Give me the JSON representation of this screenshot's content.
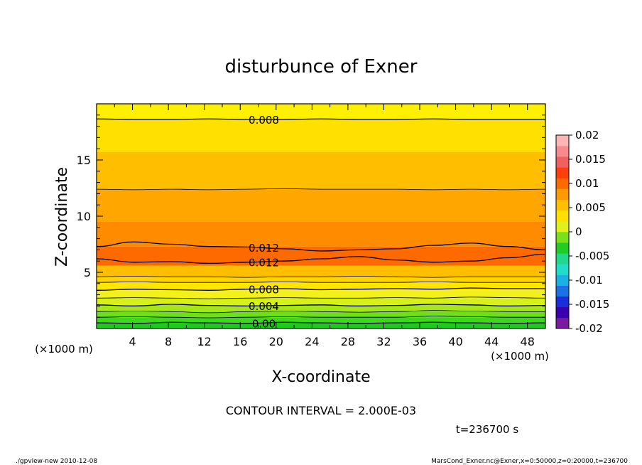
{
  "chart_data": {
    "type": "heatmap",
    "title": "disturbunce of Exner",
    "xlabel": "X-coordinate",
    "ylabel": "Z-coordinate",
    "x_unit": "(×1000 m)",
    "y_unit": "(×1000 m)",
    "xlim": [
      0,
      50
    ],
    "ylim": [
      0,
      20
    ],
    "x_ticks": [
      4,
      8,
      12,
      16,
      20,
      24,
      28,
      32,
      36,
      40,
      44,
      48
    ],
    "y_ticks": [
      5,
      10,
      15
    ],
    "colorbar": {
      "ticks": [
        "0.02",
        "0.015",
        "0.01",
        "0.005",
        "0",
        "-0.005",
        "-0.01",
        "-0.015",
        "-0.02"
      ],
      "range": [
        -0.02,
        0.02
      ],
      "colors": [
        "#7a1aa0",
        "#3d00b0",
        "#1a2ed9",
        "#1a72e6",
        "#1ab2e6",
        "#22dccc",
        "#22d88a",
        "#22cc22",
        "#7ae01a",
        "#dff01a",
        "#ffe000",
        "#ffbf00",
        "#ff9900",
        "#ff6a00",
        "#ff3f0a",
        "#f06060",
        "#f78a8a",
        "#fcb4b4"
      ]
    },
    "contour_interval_text": "CONTOUR INTERVAL = 2.000E-03",
    "time_text": "t=236700 s",
    "bands": [
      {
        "z_bottom": 0.0,
        "z_top": 0.5,
        "color": "#1ccc1c"
      },
      {
        "z_bottom": 0.5,
        "z_top": 1.0,
        "color": "#3cd81c"
      },
      {
        "z_bottom": 1.0,
        "z_top": 1.5,
        "color": "#6ee01a"
      },
      {
        "z_bottom": 1.5,
        "z_top": 2.1,
        "color": "#a4e81a"
      },
      {
        "z_bottom": 2.1,
        "z_top": 2.7,
        "color": "#d6f01a"
      },
      {
        "z_bottom": 2.7,
        "z_top": 3.4,
        "color": "#f2f21a"
      },
      {
        "z_bottom": 3.4,
        "z_top": 4.1,
        "color": "#ffe600"
      },
      {
        "z_bottom": 4.1,
        "z_top": 4.6,
        "color": "#ffd400"
      },
      {
        "z_bottom": 4.6,
        "z_top": 5.6,
        "color": "#ffbf00"
      },
      {
        "z_bottom": 5.6,
        "z_top": 7.3,
        "color": "#ff6a00"
      },
      {
        "z_bottom": 7.3,
        "z_top": 9.5,
        "color": "#ff8c00"
      },
      {
        "z_bottom": 9.5,
        "z_top": 12.4,
        "color": "#ffa600"
      },
      {
        "z_bottom": 12.4,
        "z_top": 15.7,
        "color": "#ffbf00"
      },
      {
        "z_bottom": 15.7,
        "z_top": 18.6,
        "color": "#ffe000"
      },
      {
        "z_bottom": 18.6,
        "z_top": 20.0,
        "color": "#fff000"
      }
    ],
    "contours": [
      {
        "label": "0.008",
        "z": [
          18.65,
          18.6,
          18.6,
          18.65,
          18.6,
          18.6,
          18.65,
          18.6,
          18.6,
          18.65,
          18.6,
          18.6,
          18.6
        ],
        "label_x": 18
      },
      {
        "label": "",
        "z": [
          12.4,
          12.35,
          12.4,
          12.35,
          12.4,
          12.45,
          12.4,
          12.4,
          12.4,
          12.35,
          12.4,
          12.35,
          12.4
        ],
        "label_x": null
      },
      {
        "label": "0.012",
        "z": [
          7.3,
          7.7,
          7.5,
          7.3,
          7.25,
          7.1,
          6.9,
          7.0,
          7.1,
          7.4,
          7.6,
          7.3,
          7.0
        ],
        "label_x": 18
      },
      {
        "label": "0.012",
        "z": [
          6.2,
          5.9,
          5.95,
          5.8,
          5.9,
          6.0,
          6.2,
          6.4,
          6.1,
          5.9,
          6.0,
          6.3,
          6.6
        ],
        "label_x": 18
      },
      {
        "label": "",
        "z": [
          4.6,
          4.65,
          4.6,
          4.6,
          4.55,
          4.6,
          4.6,
          4.65,
          4.6,
          4.55,
          4.6,
          4.6,
          4.6
        ],
        "label_x": null
      },
      {
        "label": "",
        "z": [
          4.1,
          4.15,
          4.1,
          4.1,
          4.1,
          4.15,
          4.1,
          4.1,
          4.1,
          4.15,
          4.1,
          4.1,
          4.1
        ],
        "label_x": null
      },
      {
        "label": "0.008",
        "z": [
          3.4,
          3.5,
          3.45,
          3.4,
          3.5,
          3.55,
          3.45,
          3.5,
          3.55,
          3.5,
          3.6,
          3.55,
          3.55
        ],
        "label_x": 18
      },
      {
        "label": "",
        "z": [
          2.7,
          2.75,
          2.7,
          2.65,
          2.7,
          2.75,
          2.7,
          2.7,
          2.75,
          2.7,
          2.8,
          2.75,
          2.7
        ],
        "label_x": null
      },
      {
        "label": "0.004",
        "z": [
          2.1,
          2.0,
          2.15,
          2.05,
          2.0,
          2.05,
          2.1,
          2.0,
          2.05,
          2.15,
          2.1,
          2.0,
          2.05
        ],
        "label_x": 18
      },
      {
        "label": "",
        "z": [
          1.5,
          1.55,
          1.5,
          1.4,
          1.5,
          1.55,
          1.5,
          1.45,
          1.5,
          1.6,
          1.55,
          1.5,
          1.5
        ],
        "label_x": null
      },
      {
        "label": "",
        "z": [
          1.0,
          1.05,
          1.0,
          0.95,
          1.0,
          1.05,
          1.0,
          1.0,
          1.0,
          1.1,
          1.05,
          1.0,
          1.0
        ],
        "label_x": null
      },
      {
        "label": "0.00",
        "z": [
          0.5,
          0.45,
          0.55,
          0.5,
          0.45,
          0.55,
          0.5,
          0.45,
          0.5,
          0.55,
          0.5,
          0.45,
          0.5
        ],
        "label_x": 18
      }
    ]
  },
  "footer": {
    "left": "./gpview-new   2010-12-08",
    "right": "MarsCond_Exner.nc@Exner,x=0:50000,z=0:20000,t=236700"
  }
}
